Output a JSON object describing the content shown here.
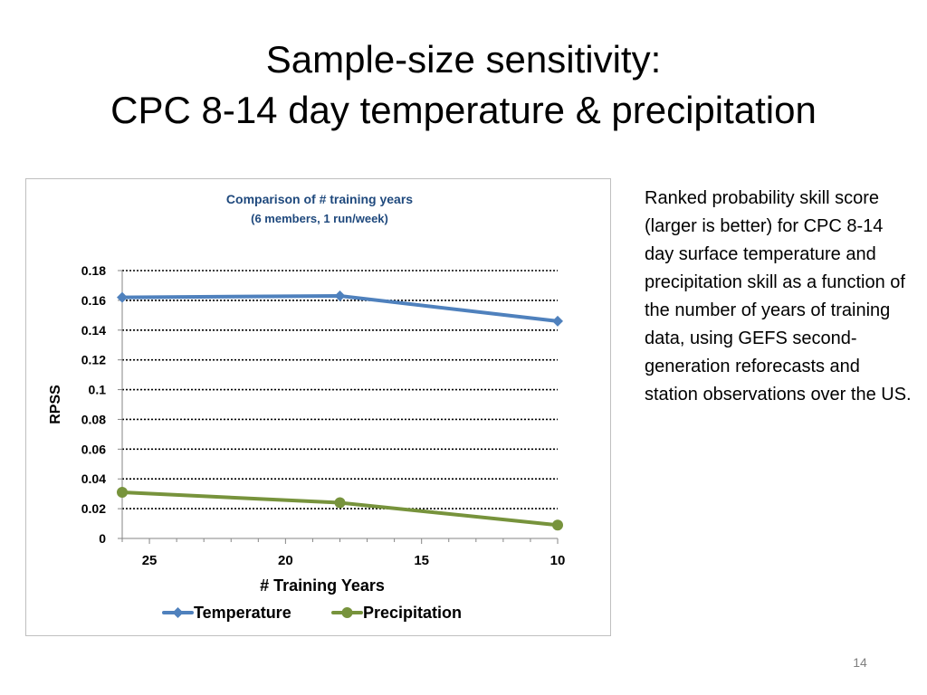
{
  "slide": {
    "title_line1": "Sample-size sensitivity:",
    "title_line2": "CPC 8-14 day temperature & precipitation",
    "description": "Ranked probability skill score (larger is better) for CPC 8-14 day surface temperature and precipitation skill as a function of the number of years of training data, using GEFS second-generation reforecasts and station observations over the US.",
    "page_number": "14"
  },
  "colors": {
    "temperature": "#4f81bd",
    "precipitation": "#77933c",
    "title_text": "#1f497d"
  },
  "chart_data": {
    "type": "line",
    "title": "Comparison of # training years",
    "subtitle": "(6 members, 1 run/week)",
    "xlabel": "# Training Years",
    "ylabel": "RPSS",
    "x_reversed": true,
    "xlim": [
      26,
      10
    ],
    "ylim": [
      0,
      0.18
    ],
    "x_ticks": [
      25,
      20,
      15,
      10
    ],
    "x_tick_labels": [
      "25",
      "20",
      "15",
      "10"
    ],
    "y_ticks": [
      0,
      0.02,
      0.04,
      0.06,
      0.08,
      0.1,
      0.12,
      0.14,
      0.16,
      0.18
    ],
    "y_tick_labels": [
      "0",
      "0.02",
      "0.04",
      "0.06",
      "0.08",
      "0.1",
      "0.12",
      "0.14",
      "0.16",
      "0.18"
    ],
    "grid": "horizontal dotted",
    "legend_position": "bottom",
    "series": [
      {
        "name": "Temperature",
        "x": [
          26,
          18,
          10
        ],
        "values": [
          0.162,
          0.163,
          0.146
        ]
      },
      {
        "name": "Precipitation",
        "x": [
          26,
          18,
          10
        ],
        "values": [
          0.031,
          0.024,
          0.009
        ]
      }
    ]
  }
}
